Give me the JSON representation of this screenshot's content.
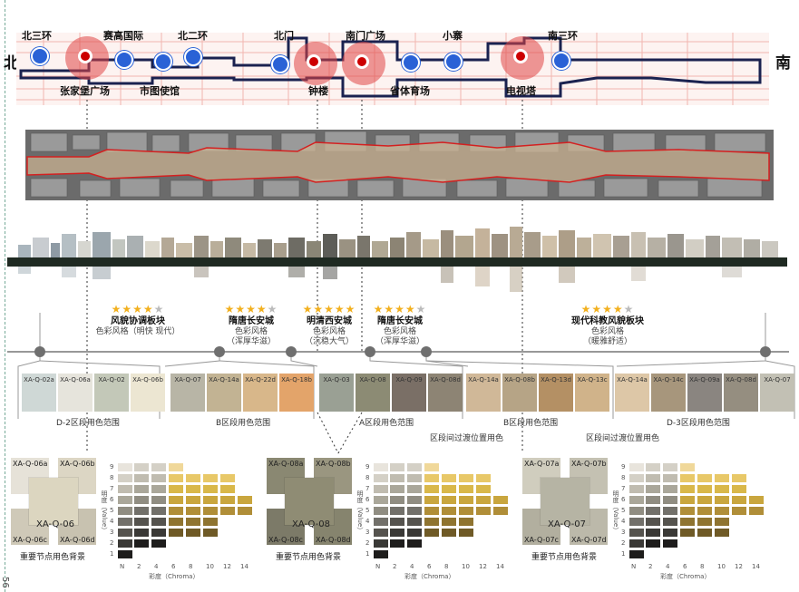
{
  "map": {
    "north": "北",
    "south": "南",
    "stations_top": [
      "北三环",
      "赛高国际",
      "北二环",
      "北门",
      "南门广场",
      "小寨",
      "南三环"
    ],
    "stations_bottom": [
      "张家堡广场",
      "市图使馆",
      "钟楼",
      "省体育场",
      "电视塔"
    ]
  },
  "zones": [
    {
      "stars": 4,
      "name": "风貌协调板块",
      "sub": "色彩风格（明快 现代）"
    },
    {
      "stars": 4,
      "name": "隋唐长安城",
      "sub": "色彩风格",
      "sub2": "（浑厚华滋）"
    },
    {
      "stars": 5,
      "name": "明清西安城",
      "sub": "色彩风格",
      "sub2": "（沉稳大气）"
    },
    {
      "stars": 4,
      "name": "隋唐长安城",
      "sub": "色彩风格",
      "sub2": "（浑厚华滋）"
    },
    {
      "stars": 4,
      "name": "现代科教风貌板块",
      "sub": "色彩风格",
      "sub2": "（暖雅舒适）"
    }
  ],
  "swatches": [
    {
      "code": "XA-Q-02a",
      "color": "#cfd8d6"
    },
    {
      "code": "XA-Q-06a",
      "color": "#e6e4dc"
    },
    {
      "code": "XA-Q-02",
      "color": "#c3c8b8"
    },
    {
      "code": "XA-Q-06b",
      "color": "#ece6d2"
    },
    {
      "code": "XA-Q-07",
      "color": "#b8b5a6"
    },
    {
      "code": "XA-Q-14a",
      "color": "#c2b393"
    },
    {
      "code": "XA-Q-22d",
      "color": "#d8b78a"
    },
    {
      "code": "XA-Q-18b",
      "color": "#e3a46a"
    },
    {
      "code": "XA-Q-03",
      "color": "#9aa094"
    },
    {
      "code": "XA-Q-08",
      "color": "#8c8b74"
    },
    {
      "code": "XA-Q-09",
      "color": "#7a6f66"
    },
    {
      "code": "XA-Q-08d",
      "color": "#8d8474"
    },
    {
      "code": "XA-Q-14a",
      "color": "#d0b898"
    },
    {
      "code": "XA-Q-08b",
      "color": "#b6a486"
    },
    {
      "code": "XA-Q-13d",
      "color": "#b49064"
    },
    {
      "code": "XA-Q-13c",
      "color": "#d0b38a"
    },
    {
      "code": "XA-Q-14a",
      "color": "#ddc7a7"
    },
    {
      "code": "XA-Q-14c",
      "color": "#a7967c"
    },
    {
      "code": "XA-Q-09a",
      "color": "#8a8580"
    },
    {
      "code": "XA-Q-08d",
      "color": "#958e80"
    },
    {
      "code": "XA-Q-07",
      "color": "#c2c0b4"
    }
  ],
  "groups": [
    "D-2区段用色范围",
    "B区段用色范围",
    "A区段用色范围",
    "B区段用色范围",
    "D-3区段用色范围"
  ],
  "transitions": [
    "区段间过渡位置用色",
    "区段间过渡位置用色"
  ],
  "palettes": [
    {
      "main": "XA-Q-06",
      "a": "XA-Q-06a",
      "b": "XA-Q-06b",
      "c": "XA-Q-06c",
      "d": "XA-Q-06d",
      "mainColor": "#dcd6c0",
      "note": "重要节点用色背景"
    },
    {
      "main": "XA-Q-08",
      "a": "XA-Q-08a",
      "b": "XA-Q-08b",
      "c": "XA-Q-08c",
      "d": "XA-Q-08d",
      "mainColor": "#8f8c74",
      "note": "重要节点用色背景"
    },
    {
      "main": "XA-Q-07",
      "a": "XA-Q-07a",
      "b": "XA-Q-07b",
      "c": "XA-Q-07c",
      "d": "XA-Q-07d",
      "mainColor": "#b6b4a4",
      "note": "重要节点用色背景"
    }
  ],
  "axis": {
    "value_label": "明度（Value）",
    "chroma_label": "彩度（Chroma）",
    "value_ticks": [
      "9",
      "8",
      "7",
      "6",
      "5",
      "4",
      "3",
      "2",
      "1"
    ],
    "chroma_ticks": [
      "N",
      "2",
      "4",
      "6",
      "8",
      "10",
      "12",
      "14"
    ]
  },
  "page_number": "56"
}
